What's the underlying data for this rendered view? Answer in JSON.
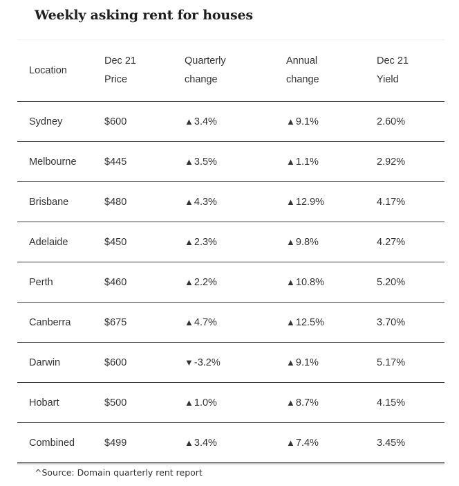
{
  "title": "Weekly asking rent for houses",
  "table": {
    "headers": [
      [
        "Location"
      ],
      [
        "Dec 21",
        "Price"
      ],
      [
        "Quarterly",
        "change"
      ],
      [
        "Annual",
        "change"
      ],
      [
        "Dec 21",
        "Yield"
      ]
    ],
    "rows": [
      {
        "location": "Sydney",
        "price": "$600",
        "q_arrow": "▲",
        "q_change": "3.4%",
        "a_arrow": "▲",
        "a_change": "9.1%",
        "yield": "2.60%"
      },
      {
        "location": "Melbourne",
        "price": "$445",
        "q_arrow": "▲",
        "q_change": "3.5%",
        "a_arrow": "▲",
        "a_change": "1.1%",
        "yield": "2.92%"
      },
      {
        "location": "Brisbane",
        "price": "$480",
        "q_arrow": "▲",
        "q_change": "4.3%",
        "a_arrow": "▲",
        "a_change": "12.9%",
        "yield": "4.17%"
      },
      {
        "location": "Adelaide",
        "price": "$450",
        "q_arrow": "▲",
        "q_change": "2.3%",
        "a_arrow": "▲",
        "a_change": "9.8%",
        "yield": "4.27%"
      },
      {
        "location": "Perth",
        "price": "$460",
        "q_arrow": "▲",
        "q_change": "2.2%",
        "a_arrow": "▲",
        "a_change": "10.8%",
        "yield": "5.20%"
      },
      {
        "location": "Canberra",
        "price": "$675",
        "q_arrow": "▲",
        "q_change": "4.7%",
        "a_arrow": "▲",
        "a_change": "12.5%",
        "yield": "3.70%"
      },
      {
        "location": "Darwin",
        "price": "$600",
        "q_arrow": "▼",
        "q_change": "-3.2%",
        "a_arrow": "▲",
        "a_change": "9.1%",
        "yield": "5.17%"
      },
      {
        "location": "Hobart",
        "price": "$500",
        "q_arrow": "▲",
        "q_change": "1.0%",
        "a_arrow": "▲",
        "a_change": "8.7%",
        "yield": "4.15%"
      },
      {
        "location": "Combined",
        "price": "$499",
        "q_arrow": "▲",
        "q_change": "3.4%",
        "a_arrow": "▲",
        "a_change": "7.4%",
        "yield": "3.45%"
      }
    ]
  },
  "source_note": "^Source: Domain quarterly rent report"
}
